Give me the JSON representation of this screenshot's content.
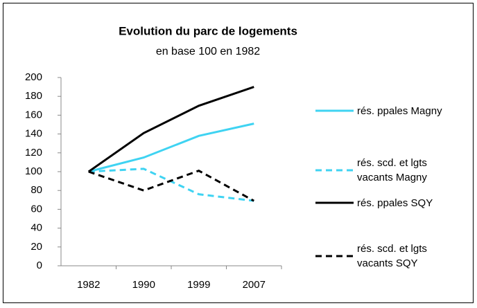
{
  "chart_data": {
    "type": "line",
    "title": "Evolution du parc de logements",
    "subtitle": "en base 100 en 1982",
    "categories": [
      "1982",
      "1990",
      "1999",
      "2007"
    ],
    "series": [
      {
        "name": "rés. ppales Magny",
        "color": "#3fd3f2",
        "dash": false,
        "values": [
          100,
          115,
          138,
          151
        ]
      },
      {
        "name": "rés. scd. et lgts vacants Magny",
        "color": "#3fd3f2",
        "dash": true,
        "values": [
          100,
          103,
          76,
          69
        ]
      },
      {
        "name": "rés. ppales SQY",
        "color": "#000000",
        "dash": false,
        "values": [
          100,
          141,
          170,
          190
        ]
      },
      {
        "name": "rés. scd. et lgts vacants SQY",
        "color": "#000000",
        "dash": true,
        "values": [
          100,
          80,
          101,
          69
        ]
      }
    ],
    "ylim": [
      0,
      200
    ],
    "yticks": [
      0,
      20,
      40,
      60,
      80,
      100,
      120,
      140,
      160,
      180,
      200
    ],
    "grid": false,
    "legend": "right"
  }
}
